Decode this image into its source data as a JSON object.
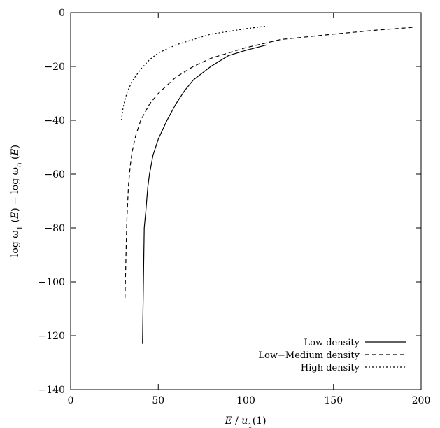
{
  "chart_data": {
    "type": "line",
    "title": "",
    "xlabel": "E / u1(1)",
    "ylabel": "log ω1 (E) − log ω0 (E)",
    "xlim": [
      0,
      200
    ],
    "ylim": [
      -140,
      0
    ],
    "xticks": [
      0,
      50,
      100,
      150,
      200
    ],
    "yticks": [
      0,
      -20,
      -40,
      -60,
      -80,
      -100,
      -120,
      -140
    ],
    "xtick_labels": [
      "0",
      "50",
      "100",
      "150",
      "200"
    ],
    "ytick_labels": [
      "0",
      "−20",
      "−40",
      "−60",
      "−80",
      "−100",
      "−120",
      "−140"
    ],
    "grid": false,
    "legend_position": "bottom-right",
    "series": [
      {
        "name": "Low density",
        "style": "solid",
        "x": [
          41,
          42,
          43,
          44,
          45,
          47,
          50,
          55,
          60,
          65,
          70,
          80,
          90,
          100,
          112
        ],
        "y": [
          -123,
          -80,
          -73,
          -65,
          -60,
          -53,
          -47,
          -40,
          -34,
          -29,
          -25,
          -20,
          -16,
          -14,
          -12
        ]
      },
      {
        "name": "Low−Medium density",
        "style": "dashed",
        "x": [
          31,
          32,
          33,
          34,
          35,
          37,
          40,
          45,
          50,
          60,
          70,
          80,
          100,
          120,
          150,
          175,
          195
        ],
        "y": [
          -106,
          -78,
          -64,
          -57,
          -52,
          -46,
          -40,
          -34,
          -30,
          -24,
          -20,
          -17,
          -13,
          -10,
          -8,
          -6.5,
          -5.5
        ]
      },
      {
        "name": "High density",
        "style": "dotted",
        "x": [
          29,
          30,
          32,
          35,
          40,
          45,
          50,
          60,
          70,
          80,
          90,
          100,
          112
        ],
        "y": [
          -40,
          -35,
          -30,
          -25.5,
          -21,
          -17.5,
          -15,
          -12,
          -10,
          -8,
          -7,
          -6,
          -5
        ]
      }
    ]
  }
}
